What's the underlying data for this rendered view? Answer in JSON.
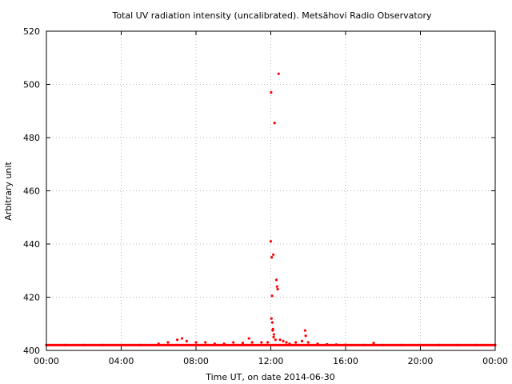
{
  "chart_data": {
    "type": "scatter",
    "title": "Total UV radiation intensity (uncalibrated). Metsähovi Radio Observatory",
    "xlabel": "Time UT, on date 2014-06-30",
    "ylabel": "Arbitrary unit",
    "xlim": [
      "00:00",
      "24:00"
    ],
    "ylim": [
      400,
      520
    ],
    "x_ticks": [
      "00:00",
      "04:00",
      "08:00",
      "12:00",
      "16:00",
      "20:00",
      "00:00"
    ],
    "y_ticks": [
      "400",
      "420",
      "440",
      "460",
      "480",
      "500",
      "520"
    ],
    "grid": true,
    "point_color": "#ff0000",
    "baseline_value": 402,
    "series": [
      {
        "x": [
          "00:00",
          "01:00",
          "02:00",
          "03:00",
          "04:00",
          "05:00",
          "06:00",
          "06:30",
          "07:00",
          "07:15",
          "07:30",
          "08:00",
          "08:30",
          "09:00",
          "09:30",
          "10:00",
          "10:30",
          "10:50",
          "11:00",
          "11:30",
          "11:50",
          "12:00",
          "12:01",
          "12:02",
          "12:03",
          "12:04",
          "12:05",
          "12:06",
          "12:07",
          "12:08",
          "12:09",
          "12:10",
          "12:12",
          "12:15",
          "12:18",
          "12:20",
          "12:22",
          "12:25",
          "12:30",
          "12:40",
          "12:50",
          "13:00",
          "13:20",
          "13:40",
          "13:50",
          "13:52",
          "14:00",
          "14:30",
          "15:00",
          "15:30",
          "16:00",
          "17:00",
          "17:30",
          "18:00",
          "19:00",
          "20:00",
          "21:00",
          "22:00",
          "23:00",
          "24:00"
        ],
        "y": [
          402,
          402,
          402,
          402,
          402,
          402,
          402.5,
          403,
          404,
          404.5,
          403.5,
          403,
          403,
          402.5,
          402.5,
          403,
          402.8,
          404.5,
          403,
          403,
          403,
          441,
          497,
          412,
          435,
          420.5,
          410.5,
          407.5,
          408,
          436,
          405,
          406,
          485.5,
          404,
          426.5,
          424,
          423,
          504,
          404,
          403.5,
          403,
          402.5,
          403,
          403.5,
          407.5,
          405.5,
          403,
          402.5,
          402.3,
          402.2,
          402.1,
          402,
          402.8,
          402,
          402,
          402,
          402,
          402,
          402,
          402
        ]
      }
    ]
  }
}
